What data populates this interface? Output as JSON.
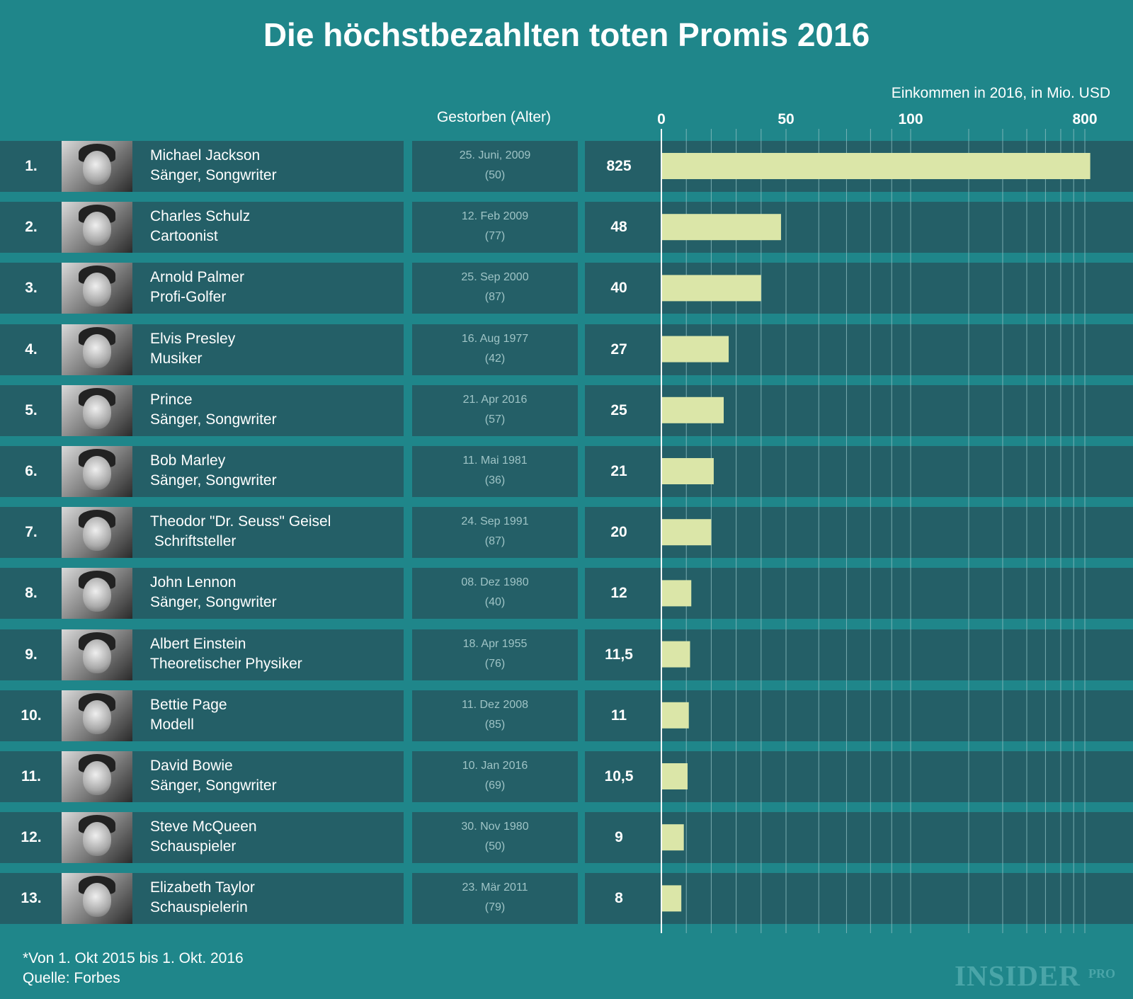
{
  "header": {
    "title": "Die höchstbezahlten toten Promis 2016",
    "unit_label": "Einkommen in 2016, in Mio. USD",
    "died_header": "Gestorben (Alter)"
  },
  "chart_data": {
    "type": "bar",
    "orientation": "horizontal",
    "title": "Die höchstbezahlten toten Promis 2016",
    "xlabel": "Einkommen in 2016, in Mio. USD",
    "axis_ticks": [
      {
        "value": 0,
        "label": "0"
      },
      {
        "value": 50,
        "label": "50"
      },
      {
        "value": 100,
        "label": "100"
      },
      {
        "value": 800,
        "label": "800"
      }
    ],
    "xlim": [
      0,
      850
    ],
    "categories": [
      "Michael Jackson",
      "Charles Schulz",
      "Arnold Palmer",
      "Elvis Presley",
      "Prince",
      "Bob Marley",
      "Theodor \"Dr. Seuss\" Geisel",
      "John Lennon",
      "Albert Einstein",
      "Bettie Page",
      "David Bowie",
      "Steve McQueen",
      "Elizabeth Taylor"
    ],
    "values": [
      825,
      48,
      40,
      27,
      25,
      21,
      20,
      12,
      11.5,
      11,
      10.5,
      9,
      8
    ],
    "rows": [
      {
        "rank": "1.",
        "name": "Michael Jackson",
        "role": "Sänger, Songwriter",
        "died": "25. Juni, 2009",
        "age": "(50)",
        "value": 825,
        "value_label": "825"
      },
      {
        "rank": "2.",
        "name": "Charles Schulz",
        "role": "Cartoonist",
        "died": "12. Feb 2009",
        "age": "(77)",
        "value": 48,
        "value_label": "48"
      },
      {
        "rank": "3.",
        "name": "Arnold Palmer",
        "role": "Profi-Golfer",
        "died": "25. Sep 2000",
        "age": "(87)",
        "value": 40,
        "value_label": "40"
      },
      {
        "rank": "4.",
        "name": "Elvis Presley",
        "role": "Musiker",
        "died": "16. Aug 1977",
        "age": "(42)",
        "value": 27,
        "value_label": "27"
      },
      {
        "rank": "5.",
        "name": "Prince",
        "role": "Sänger, Songwriter",
        "died": "21. Apr 2016",
        "age": "(57)",
        "value": 25,
        "value_label": "25"
      },
      {
        "rank": "6.",
        "name": "Bob Marley",
        "role": "Sänger, Songwriter",
        "died": "11. Mai 1981",
        "age": "(36)",
        "value": 21,
        "value_label": "21"
      },
      {
        "rank": "7.",
        "name": "Theodor \"Dr. Seuss\" Geisel",
        "role": " Schriftsteller",
        "died": "24. Sep 1991",
        "age": "(87)",
        "value": 20,
        "value_label": "20"
      },
      {
        "rank": "8.",
        "name": "John Lennon",
        "role": "Sänger, Songwriter",
        "died": "08. Dez 1980",
        "age": "(40)",
        "value": 12,
        "value_label": "12"
      },
      {
        "rank": "9.",
        "name": "Albert Einstein",
        "role": "Theoretischer Physiker",
        "died": "18. Apr 1955",
        "age": "(76)",
        "value": 11.5,
        "value_label": "11,5"
      },
      {
        "rank": "10.",
        "name": "Bettie Page",
        "role": "Modell",
        "died": "11. Dez 2008",
        "age": "(85)",
        "value": 11,
        "value_label": "11"
      },
      {
        "rank": "11.",
        "name": "David Bowie",
        "role": "Sänger, Songwriter",
        "died": "10. Jan 2016",
        "age": "(69)",
        "value": 10.5,
        "value_label": "10,5"
      },
      {
        "rank": "12.",
        "name": "Steve McQueen",
        "role": "Schauspieler",
        "died": "30. Nov 1980",
        "age": "(50)",
        "value": 9,
        "value_label": "9"
      },
      {
        "rank": "13.",
        "name": "Elizabeth Taylor",
        "role": "Schauspielerin",
        "died": "23. Mär 2011",
        "age": "(79)",
        "value": 8,
        "value_label": "8"
      }
    ]
  },
  "colors": {
    "background": "#1f868a",
    "row": "#245f67",
    "bar": "#dbe6a8",
    "gridline": "#8fbfc2",
    "muted_text": "#9fc4c6"
  },
  "footer": {
    "note": "*Von 1. Okt  2015 bis 1. Okt. 2016",
    "source": "Quelle: Forbes",
    "brand": "INSIDER",
    "brand_suffix": "PRO"
  }
}
